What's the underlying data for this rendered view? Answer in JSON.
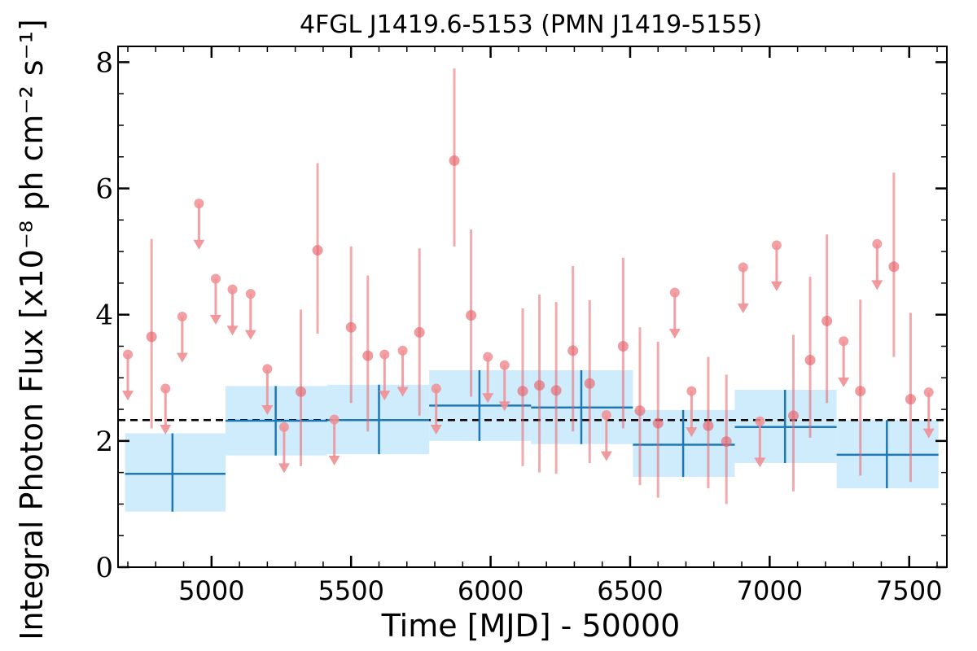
{
  "chart_data": {
    "type": "scatter",
    "title": "4FGL J1419.6-5153 (PMN J1419-5155)",
    "xlabel": "Time [MJD] - 50000",
    "ylabel": "Integral Photon Flux [x10⁻⁸ ph cm⁻² s⁻¹]",
    "xlim": [
      4665,
      7635
    ],
    "ylim": [
      0,
      8.25
    ],
    "xticks": [
      5000,
      5500,
      6000,
      6500,
      7000,
      7500
    ],
    "yticks": [
      0,
      2,
      4,
      6,
      8
    ],
    "grid": false,
    "mean_flux": 2.33,
    "colors": {
      "detection": "#e7646c",
      "upper_limit": "#f08f93",
      "binned_line": "#1f77b4",
      "binned_fill": "#bfe6fb",
      "mean_line": "#000000"
    },
    "detections": [
      {
        "x": 4785,
        "y": 3.65,
        "lo": 2.2,
        "hi": 5.2
      },
      {
        "x": 5320,
        "y": 2.78,
        "lo": 1.6,
        "hi": 4.08
      },
      {
        "x": 5380,
        "y": 5.02,
        "lo": 3.7,
        "hi": 6.4
      },
      {
        "x": 5500,
        "y": 3.8,
        "lo": 2.6,
        "hi": 5.08
      },
      {
        "x": 5560,
        "y": 3.35,
        "lo": 2.15,
        "hi": 4.62
      },
      {
        "x": 5745,
        "y": 3.72,
        "lo": 2.4,
        "hi": 5.05
      },
      {
        "x": 5870,
        "y": 6.44,
        "lo": 5.08,
        "hi": 7.9
      },
      {
        "x": 5930,
        "y": 3.99,
        "lo": 2.7,
        "hi": 5.35
      },
      {
        "x": 6115,
        "y": 2.79,
        "lo": 1.6,
        "hi": 4.1
      },
      {
        "x": 6175,
        "y": 2.88,
        "lo": 1.5,
        "hi": 4.32
      },
      {
        "x": 6235,
        "y": 2.8,
        "lo": 1.48,
        "hi": 4.2
      },
      {
        "x": 6295,
        "y": 3.43,
        "lo": 2.15,
        "hi": 4.77
      },
      {
        "x": 6355,
        "y": 2.91,
        "lo": 1.65,
        "hi": 4.23
      },
      {
        "x": 6475,
        "y": 3.5,
        "lo": 2.2,
        "hi": 4.9
      },
      {
        "x": 6535,
        "y": 2.48,
        "lo": 1.3,
        "hi": 3.8
      },
      {
        "x": 6600,
        "y": 2.28,
        "lo": 1.1,
        "hi": 3.57
      },
      {
        "x": 6780,
        "y": 2.24,
        "lo": 1.25,
        "hi": 3.33
      },
      {
        "x": 6845,
        "y": 1.99,
        "lo": 1.0,
        "hi": 3.05
      },
      {
        "x": 7085,
        "y": 2.4,
        "lo": 1.2,
        "hi": 3.68
      },
      {
        "x": 7145,
        "y": 3.28,
        "lo": 2.05,
        "hi": 4.6
      },
      {
        "x": 7205,
        "y": 3.9,
        "lo": 2.6,
        "hi": 5.27
      },
      {
        "x": 7325,
        "y": 2.79,
        "lo": 1.45,
        "hi": 4.24
      },
      {
        "x": 7445,
        "y": 4.76,
        "lo": 3.33,
        "hi": 6.25
      },
      {
        "x": 7505,
        "y": 2.66,
        "lo": 1.35,
        "hi": 4.03
      }
    ],
    "upper_limits": [
      {
        "x": 4700,
        "y": 3.37
      },
      {
        "x": 4835,
        "y": 2.83
      },
      {
        "x": 4895,
        "y": 3.97
      },
      {
        "x": 4955,
        "y": 5.76
      },
      {
        "x": 5015,
        "y": 4.57
      },
      {
        "x": 5075,
        "y": 4.4
      },
      {
        "x": 5140,
        "y": 4.33
      },
      {
        "x": 5200,
        "y": 3.14
      },
      {
        "x": 5260,
        "y": 2.22
      },
      {
        "x": 5440,
        "y": 2.34
      },
      {
        "x": 5620,
        "y": 3.37
      },
      {
        "x": 5685,
        "y": 3.43
      },
      {
        "x": 5805,
        "y": 2.83
      },
      {
        "x": 5990,
        "y": 3.33
      },
      {
        "x": 6050,
        "y": 3.2
      },
      {
        "x": 6415,
        "y": 2.41
      },
      {
        "x": 6660,
        "y": 4.35
      },
      {
        "x": 6720,
        "y": 2.79
      },
      {
        "x": 6905,
        "y": 4.75
      },
      {
        "x": 6965,
        "y": 2.31
      },
      {
        "x": 7025,
        "y": 5.1
      },
      {
        "x": 7265,
        "y": 3.58
      },
      {
        "x": 7385,
        "y": 5.12
      },
      {
        "x": 7570,
        "y": 2.77
      }
    ],
    "binned": [
      {
        "x0": 4690,
        "x1": 5050,
        "xc": 4860,
        "y": 1.48,
        "lo": 0.88,
        "hi": 2.12
      },
      {
        "x0": 5050,
        "x1": 5415,
        "xc": 5230,
        "y": 2.32,
        "lo": 1.77,
        "hi": 2.87
      },
      {
        "x0": 5415,
        "x1": 5780,
        "xc": 5600,
        "y": 2.33,
        "lo": 1.79,
        "hi": 2.89
      },
      {
        "x0": 5780,
        "x1": 6145,
        "xc": 5960,
        "y": 2.56,
        "lo": 2.0,
        "hi": 3.12
      },
      {
        "x0": 6145,
        "x1": 6510,
        "xc": 6325,
        "y": 2.53,
        "lo": 1.95,
        "hi": 3.12
      },
      {
        "x0": 6510,
        "x1": 6875,
        "xc": 6690,
        "y": 1.94,
        "lo": 1.43,
        "hi": 2.49
      },
      {
        "x0": 6875,
        "x1": 7240,
        "xc": 7055,
        "y": 2.22,
        "lo": 1.65,
        "hi": 2.81
      },
      {
        "x0": 7240,
        "x1": 7605,
        "xc": 7420,
        "y": 1.78,
        "lo": 1.25,
        "hi": 2.33
      }
    ]
  }
}
